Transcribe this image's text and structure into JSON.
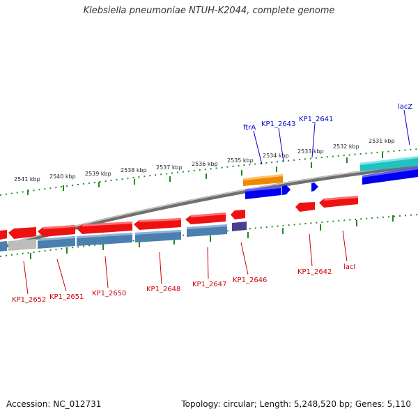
{
  "title": "Klebsiella pneumoniae NTUH-K2044, complete genome",
  "footer": {
    "accession": "Accession: NC_012731",
    "topology": "Topology: circular; Length: 5,248,520 bp; Genes: 5,110"
  },
  "colors": {
    "backbone": "#8a8a8a",
    "tick": "#1f8a1f",
    "forward_gene": "#0000ee",
    "reverse_gene": "#ee1111",
    "forward_label": "#0000cc",
    "reverse_label": "#cc0000",
    "cds_reverse": "#4a7fb0",
    "trna": "#ee8800",
    "teal": "#22c0c0",
    "purple": "#4a3f8f",
    "gray_feature": "#bdbdbd"
  },
  "ticks": [
    "2541 kbp",
    "2540 kbp",
    "2539 kbp",
    "2538 kbp",
    "2537 kbp",
    "2536 kbp",
    "2535 kbp",
    "2534 kbp",
    "2533 kbp",
    "2532 kbp",
    "2531 kbp"
  ],
  "labels": {
    "forward": [
      "ftrA",
      "KP1_2643",
      "KP1_2641",
      "lacZ"
    ],
    "reverse": [
      "KP1_2652",
      "KP1_2651",
      "KP1_2650",
      "KP1_2648",
      "KP1_2647",
      "KP1_2646",
      "KP1_2642",
      "lacI"
    ]
  }
}
